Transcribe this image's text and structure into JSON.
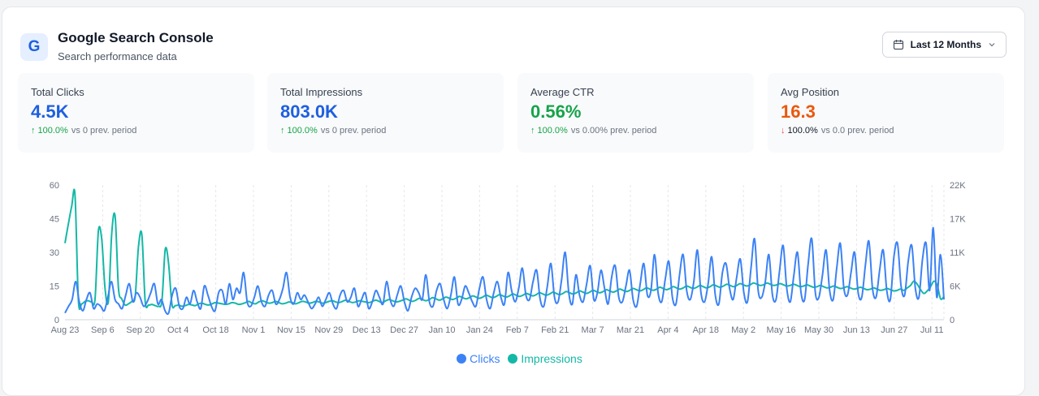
{
  "colors": {
    "clicks": "#3b82f6",
    "impressions": "#14b8a6",
    "green": "#16a34a",
    "orange": "#ea580c",
    "red": "#ef4444",
    "blue_value": "#1d5fe0"
  },
  "header": {
    "logo_letter": "G",
    "title": "Google Search Console",
    "subtitle": "Search performance data",
    "range_label": "Last 12 Months",
    "range_icon": "calendar-icon",
    "range_chevron": "chevron-down-icon"
  },
  "stats": [
    {
      "label": "Total Clicks",
      "value": "4.5K",
      "value_color": "#1d5fe0",
      "arrow": "↑",
      "arrow_color": "#16a34a",
      "pct": "100.0%",
      "pct_color": "#16a34a",
      "compare": "vs 0 prev. period"
    },
    {
      "label": "Total Impressions",
      "value": "803.0K",
      "value_color": "#1d5fe0",
      "arrow": "↑",
      "arrow_color": "#16a34a",
      "pct": "100.0%",
      "pct_color": "#16a34a",
      "compare": "vs 0 prev. period"
    },
    {
      "label": "Average CTR",
      "value": "0.56%",
      "value_color": "#16a34a",
      "arrow": "↑",
      "arrow_color": "#16a34a",
      "pct": "100.0%",
      "pct_color": "#16a34a",
      "compare": "vs 0.00% prev. period"
    },
    {
      "label": "Avg Position",
      "value": "16.3",
      "value_color": "#ea580c",
      "arrow": "↓",
      "arrow_color": "#ef4444",
      "pct": "100.0%",
      "pct_color": "#111827",
      "compare": "vs 0.0 prev. period"
    }
  ],
  "legend": {
    "clicks": "Clicks",
    "impressions": "Impressions"
  },
  "chart_data": {
    "type": "line",
    "x_tick_labels": [
      "Aug 23",
      "Sep 6",
      "Sep 20",
      "Oct 4",
      "Oct 18",
      "Nov 1",
      "Nov 15",
      "Nov 29",
      "Dec 13",
      "Dec 27",
      "Jan 10",
      "Jan 24",
      "Feb 7",
      "Feb 21",
      "Mar 7",
      "Mar 21",
      "Apr 4",
      "Apr 18",
      "May 2",
      "May 16",
      "May 30",
      "Jun 13",
      "Jun 27",
      "Jul 11"
    ],
    "y_left": {
      "ticks": [
        "0",
        "15",
        "30",
        "45",
        "60"
      ],
      "range": [
        0,
        60
      ]
    },
    "y_right": {
      "ticks": [
        "0",
        "6K",
        "11K",
        "17K",
        "22K"
      ],
      "range": [
        0,
        22000
      ]
    },
    "grid": "vertical dashed",
    "series": [
      {
        "name": "Clicks",
        "axis": "left",
        "values": [
          3,
          6,
          9,
          17,
          8,
          4,
          9,
          12,
          5,
          7,
          6,
          4,
          10,
          17,
          9,
          7,
          5,
          11,
          16,
          8,
          12,
          10,
          6,
          8,
          12,
          16,
          7,
          9,
          4,
          3,
          11,
          14,
          6,
          5,
          10,
          7,
          13,
          8,
          5,
          15,
          11,
          6,
          4,
          12,
          13,
          7,
          16,
          9,
          14,
          12,
          21,
          8,
          6,
          10,
          15,
          8,
          6,
          11,
          13,
          7,
          9,
          14,
          21,
          10,
          7,
          12,
          9,
          11,
          8,
          5,
          7,
          10,
          6,
          9,
          12,
          7,
          5,
          11,
          13,
          8,
          10,
          14,
          6,
          9,
          12,
          5,
          8,
          13,
          10,
          7,
          17,
          9,
          6,
          11,
          15,
          8,
          4,
          10,
          14,
          12,
          9,
          20,
          8,
          6,
          13,
          16,
          9,
          5,
          11,
          19,
          7,
          9,
          15,
          12,
          8,
          6,
          14,
          19,
          9,
          5,
          12,
          17,
          10,
          7,
          21,
          13,
          8,
          14,
          23,
          11,
          9,
          17,
          22,
          9,
          6,
          15,
          25,
          10,
          8,
          18,
          30,
          12,
          7,
          20,
          11,
          8,
          16,
          24,
          9,
          12,
          22,
          14,
          7,
          19,
          24,
          10,
          8,
          15,
          22,
          9,
          6,
          16,
          25,
          11,
          13,
          29,
          12,
          8,
          18,
          26,
          10,
          7,
          20,
          29,
          13,
          9,
          17,
          31,
          12,
          8,
          16,
          28,
          11,
          7,
          21,
          25,
          14,
          9,
          19,
          27,
          12,
          8,
          23,
          36,
          13,
          10,
          17,
          29,
          11,
          9,
          22,
          33,
          14,
          8,
          20,
          30,
          12,
          9,
          25,
          36,
          12,
          10,
          20,
          31,
          13,
          9,
          23,
          34,
          14,
          11,
          21,
          30,
          12,
          10,
          24,
          35,
          14,
          10,
          22,
          31,
          13,
          9,
          28,
          34,
          15,
          11,
          26,
          33,
          14,
          10,
          27,
          34,
          13,
          41,
          10,
          29,
          9
        ]
      },
      {
        "name": "Impressions",
        "axis": "right",
        "values": [
          12500,
          15600,
          18500,
          20400,
          3200,
          2600,
          3000,
          3100,
          2900,
          3400,
          14500,
          13100,
          5000,
          3100,
          14200,
          16900,
          5200,
          3400,
          2400,
          2600,
          3000,
          3800,
          12000,
          13900,
          3000,
          2400,
          2500,
          2300,
          2200,
          3100,
          11500,
          9200,
          2500,
          2300,
          2400,
          2200,
          2300,
          2500,
          2400,
          2300,
          2600,
          2700,
          2500,
          2400,
          2600,
          2800,
          2700,
          2600,
          2500,
          2600,
          2800,
          2700,
          2500,
          2600,
          2800,
          3000,
          2700,
          2600,
          2900,
          3100,
          2900,
          2700,
          2800,
          3000,
          2800,
          2600,
          2700,
          2900,
          2800,
          2600,
          2800,
          3000,
          2900,
          2700,
          2800,
          3000,
          2900,
          2700,
          2800,
          3000,
          3100,
          2900,
          2800,
          3000,
          3200,
          3000,
          2800,
          2900,
          3100,
          3000,
          2900,
          2800,
          3000,
          3200,
          3000,
          2800,
          3100,
          3300,
          3100,
          2900,
          3000,
          3200,
          3400,
          3200,
          3000,
          3200,
          3500,
          3300,
          3100,
          3300,
          3600,
          3400,
          3200,
          3400,
          3700,
          3500,
          3300,
          3500,
          3800,
          3600,
          3400,
          3600,
          3900,
          3700,
          3500,
          3700,
          4000,
          3800,
          3600,
          3800,
          4100,
          3900,
          3700,
          3900,
          4200,
          4000,
          3800,
          4000,
          4300,
          4100,
          3900,
          4100,
          4400,
          4200,
          4000,
          4200,
          4500,
          4300,
          4100,
          4300,
          4600,
          4400,
          4200,
          4400,
          4700,
          4500,
          4300,
          4500,
          4800,
          4600,
          4400,
          4600,
          4900,
          4700,
          4500,
          4700,
          5000,
          4800,
          4600,
          4800,
          5100,
          4900,
          4700,
          4900,
          5200,
          5000,
          4800,
          5000,
          5300,
          5100,
          4900,
          5100,
          5400,
          5200,
          5000,
          5200,
          5500,
          5300,
          5100,
          5300,
          5600,
          5400,
          5200,
          5400,
          5700,
          5500,
          5300,
          5500,
          5800,
          5600,
          5400,
          5600,
          5900,
          5700,
          5500,
          5700,
          6000,
          5800,
          5600,
          5700,
          6000,
          5800,
          5600,
          5700,
          5900,
          5700,
          5500,
          5600,
          5800,
          5600,
          5400,
          5500,
          5700,
          5500,
          5300,
          5400,
          5600,
          5400,
          5200,
          5300,
          5500,
          5300,
          5100,
          5200,
          5400,
          5200,
          5000,
          5100,
          5300,
          5100,
          4900,
          5000,
          5200,
          5000,
          4800,
          4900,
          5100,
          4900,
          4700,
          4800,
          5000,
          4800,
          5200,
          5600,
          6300,
          5800,
          4900,
          4300,
          4700,
          5400,
          6300,
          5600,
          3400,
          3800
        ]
      }
    ]
  }
}
